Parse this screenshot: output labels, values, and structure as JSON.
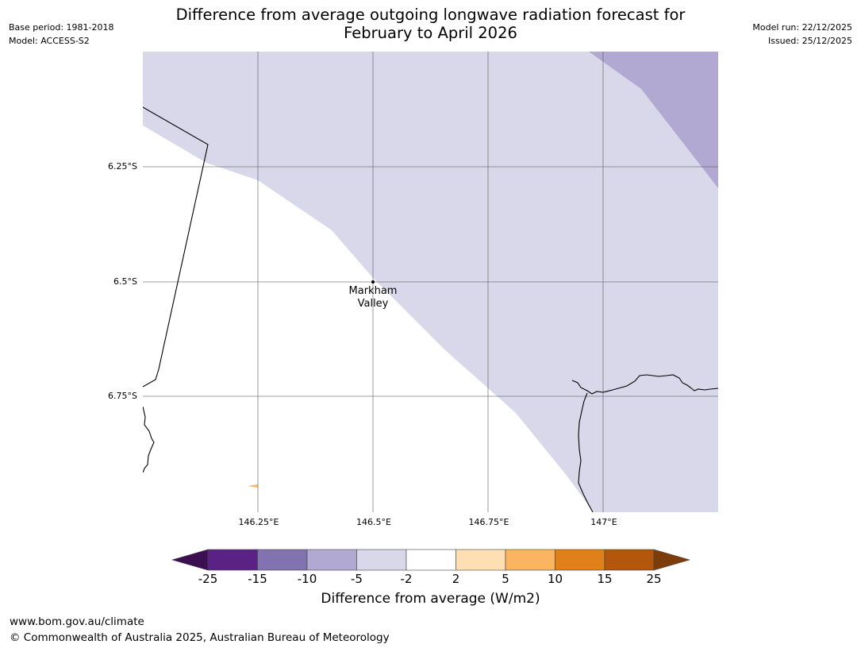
{
  "header": {
    "title_line1": "Difference from average outgoing longwave radiation forecast for",
    "title_line2": "February to April 2026",
    "base_period": "Base period: 1981-2018",
    "model": "Model: ACCESS-S2",
    "model_run": "Model run: 22/12/2025",
    "issued": "Issued: 25/12/2025"
  },
  "map": {
    "lat_labels": [
      "6.25°S",
      "6.5°S",
      "6.75°S"
    ],
    "lon_labels": [
      "146.25°E",
      "146.5°E",
      "146.75°E",
      "147°E"
    ],
    "place": {
      "name_line1": "Markham",
      "name_line2": "Valley",
      "lon": 146.5,
      "lat": -6.5
    },
    "lon_range": [
      146.0,
      147.25
    ],
    "lat_range": [
      -6.0,
      -7.0
    ],
    "shading": [
      {
        "range": "-5 to -2",
        "color": "#d8d8ea"
      },
      {
        "range": "-10 to -5",
        "color": "#b1a9d2"
      }
    ]
  },
  "colorbar": {
    "title": "Difference from average (W/m2)",
    "ticks": [
      "-25",
      "-15",
      "-10",
      "-5",
      "-2",
      "2",
      "5",
      "10",
      "15",
      "25"
    ],
    "colors": [
      "#3c0f52",
      "#5a2286",
      "#8272b0",
      "#b1a9d2",
      "#d8d8ea",
      "#ffffff",
      "#fedfb3",
      "#fbb560",
      "#e0801b",
      "#b2570b",
      "#7e3c0a"
    ]
  },
  "footer": {
    "url": "www.bom.gov.au/climate",
    "copyright": "© Commonwealth of Australia 2025, Australian Bureau of Meteorology"
  }
}
